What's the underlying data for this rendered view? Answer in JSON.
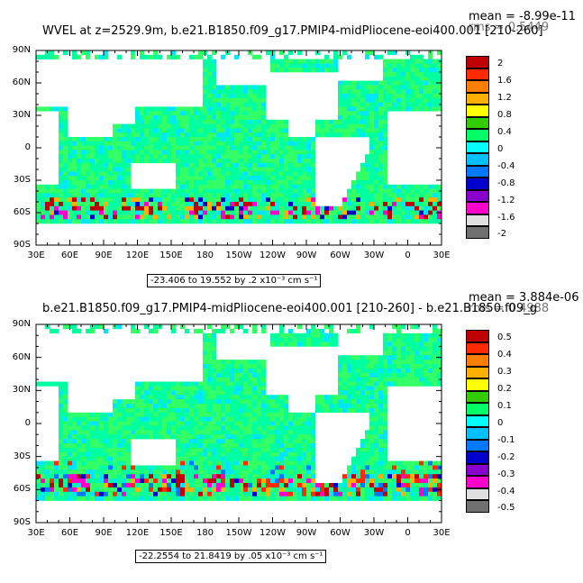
{
  "panels": [
    {
      "title": "WVEL at z=2529.9m, b.e21.B1850.f09_g17.PMIP4-midPliocene-eoi400.001 [210-260]",
      "mean": "mean = -8.99e-11",
      "rms": "rms = 0.5449",
      "range_text": "-23.406 to 19.552 by .2 x10⁻³ cm s⁻¹",
      "colorbar_labels": [
        "2",
        "1.6",
        "1.2",
        "0.8",
        "0.4",
        "0",
        "-0.4",
        "-0.8",
        "-1.2",
        "-1.6",
        "-2"
      ]
    },
    {
      "title": "b.e21.B1850.f09_g17.PMIP4-midPliocene-eoi400.001 [210-260] - b.e21.B1850.f09_g",
      "mean": "mean = 3.884e-06",
      "rms": "rms = 0.4988",
      "range_text": "-22.2554 to 21.8419 by .05 x10⁻³ cm s⁻¹",
      "colorbar_labels": [
        "0.5",
        "0.4",
        "0.3",
        "0.2",
        "0.1",
        "0",
        "-0.1",
        "-0.2",
        "-0.3",
        "-0.4",
        "-0.5"
      ]
    }
  ],
  "lat_labels": [
    "90N",
    "60N",
    "30N",
    "0",
    "30S",
    "60S",
    "90S"
  ],
  "lon_labels": [
    "30E",
    "60E",
    "90E",
    "120E",
    "150E",
    "180",
    "150W",
    "120W",
    "90W",
    "60W",
    "30W",
    "0",
    "30E"
  ],
  "colorbar_colors": [
    "#c00000",
    "#ff2a00",
    "#ff7f00",
    "#ffb000",
    "#ffff00",
    "#33cc00",
    "#00ff66",
    "#00ffff",
    "#00c0ff",
    "#0078ff",
    "#0000cc",
    "#8800cc",
    "#ff00cc",
    "#e0e0e0",
    "#707070"
  ],
  "field_colors": {
    "ocean": "#00ffa0",
    "ocean_alt": "#33ff66",
    "noise": "#00e6ff"
  }
}
